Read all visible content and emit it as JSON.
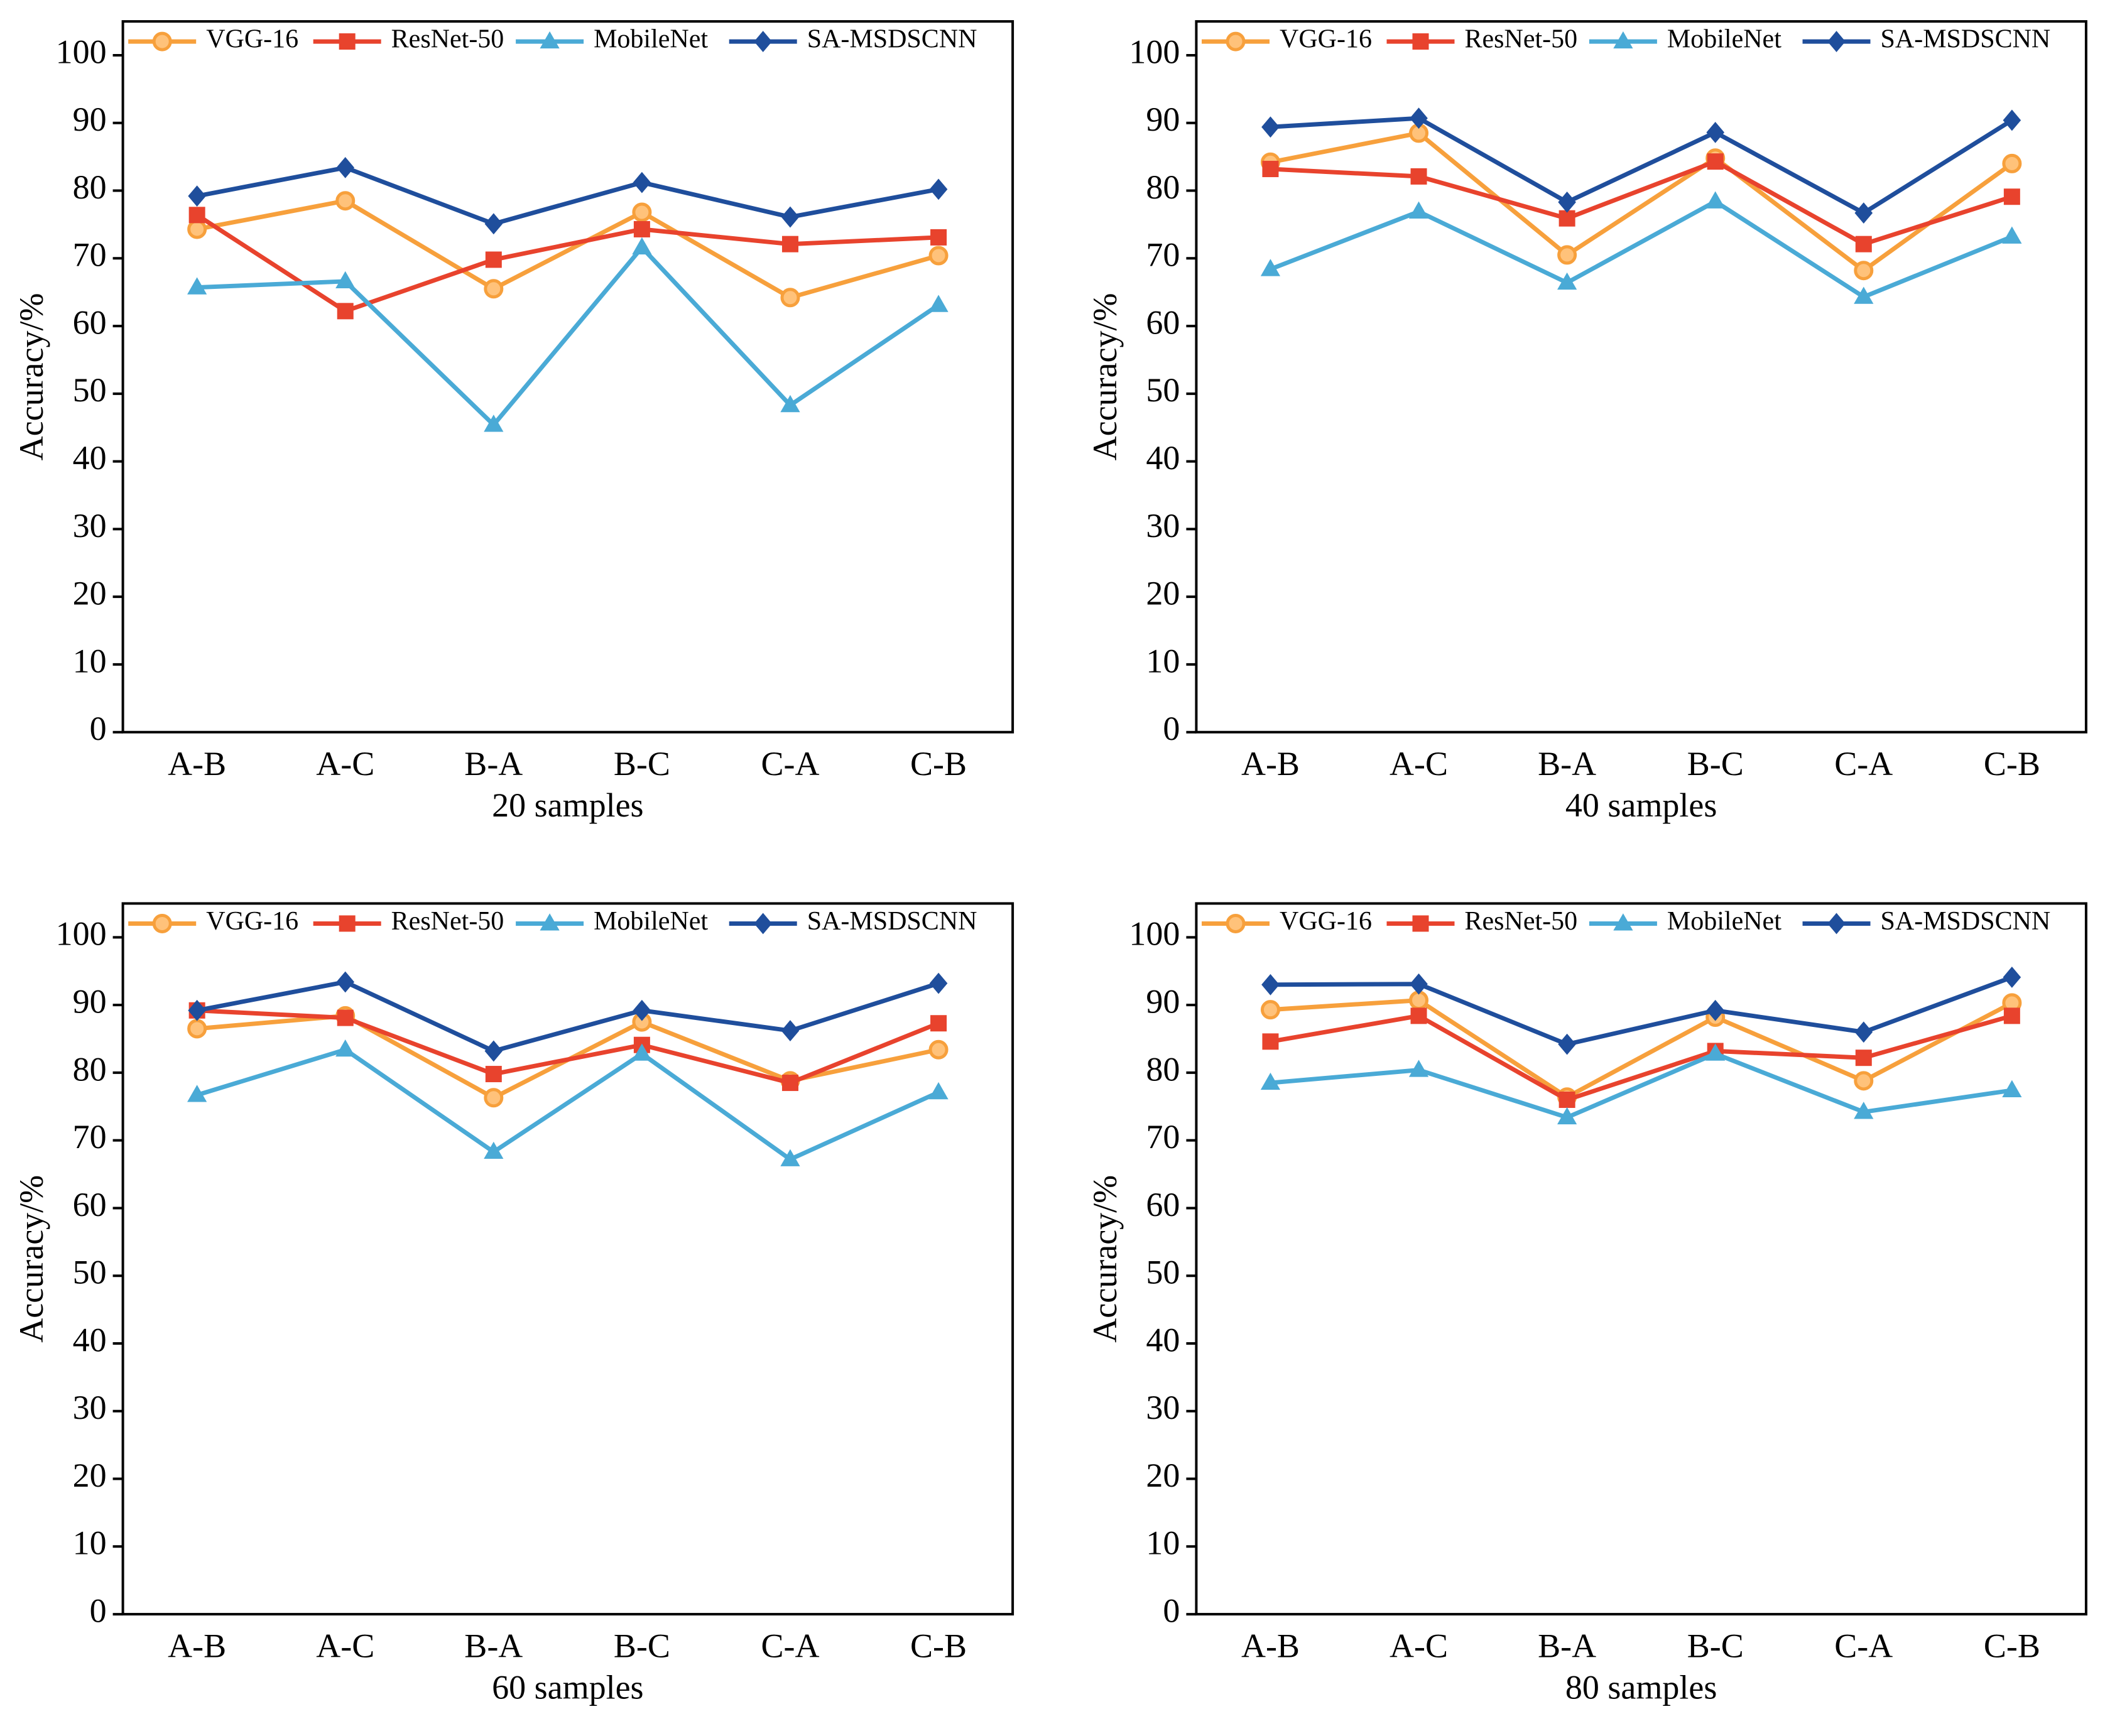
{
  "chart_data": [
    {
      "type": "line",
      "xlabel": "20 samples",
      "ylabel": "Accuracy/%",
      "categories": [
        "A-B",
        "A-C",
        "B-A",
        "B-C",
        "C-A",
        "C-B"
      ],
      "ylim": [
        0,
        105
      ],
      "yticks": [
        0,
        10,
        20,
        30,
        40,
        50,
        60,
        70,
        80,
        90,
        100
      ],
      "legend": "upper center",
      "series": [
        {
          "name": "VGG-16",
          "color": "#f7a03c",
          "marker": "circle",
          "values": [
            74.3,
            78.5,
            65.5,
            76.8,
            64.2,
            70.4
          ]
        },
        {
          "name": "ResNet-50",
          "color": "#e8432d",
          "marker": "square",
          "values": [
            76.4,
            62.2,
            69.8,
            74.3,
            72.1,
            73.1
          ]
        },
        {
          "name": "MobileNet",
          "color": "#4aaad6",
          "marker": "triangle",
          "values": [
            65.7,
            66.6,
            45.4,
            71.6,
            48.3,
            63.1
          ]
        },
        {
          "name": "SA-MSDSCNN",
          "color": "#1f4e9c",
          "marker": "diamond",
          "values": [
            79.2,
            83.4,
            75.1,
            81.2,
            76.1,
            80.2
          ]
        }
      ]
    },
    {
      "type": "line",
      "xlabel": "40 samples",
      "ylabel": "Accuracy/%",
      "categories": [
        "A-B",
        "A-C",
        "B-A",
        "B-C",
        "C-A",
        "C-B"
      ],
      "ylim": [
        0,
        105
      ],
      "yticks": [
        0,
        10,
        20,
        30,
        40,
        50,
        60,
        70,
        80,
        90,
        100
      ],
      "legend": "upper center",
      "series": [
        {
          "name": "VGG-16",
          "color": "#f7a03c",
          "marker": "circle",
          "values": [
            84.2,
            88.5,
            70.5,
            84.8,
            68.2,
            84.0
          ]
        },
        {
          "name": "ResNet-50",
          "color": "#e8432d",
          "marker": "square",
          "values": [
            83.2,
            82.1,
            75.9,
            84.3,
            72.1,
            79.1
          ]
        },
        {
          "name": "MobileNet",
          "color": "#4aaad6",
          "marker": "triangle",
          "values": [
            68.4,
            76.9,
            66.4,
            78.4,
            64.3,
            73.2
          ]
        },
        {
          "name": "SA-MSDSCNN",
          "color": "#1f4e9c",
          "marker": "diamond",
          "values": [
            89.4,
            90.7,
            78.3,
            88.6,
            76.7,
            90.4
          ]
        }
      ]
    },
    {
      "type": "line",
      "xlabel": "60 samples",
      "ylabel": "Accuracy/%",
      "categories": [
        "A-B",
        "A-C",
        "B-A",
        "B-C",
        "C-A",
        "C-B"
      ],
      "ylim": [
        0,
        105
      ],
      "yticks": [
        0,
        10,
        20,
        30,
        40,
        50,
        60,
        70,
        80,
        90,
        100
      ],
      "legend": "upper center",
      "series": [
        {
          "name": "VGG-16",
          "color": "#f7a03c",
          "marker": "circle",
          "values": [
            86.5,
            88.4,
            76.3,
            87.5,
            78.8,
            83.4
          ]
        },
        {
          "name": "ResNet-50",
          "color": "#e8432d",
          "marker": "square",
          "values": [
            89.2,
            88.1,
            79.8,
            84.1,
            78.5,
            87.3
          ]
        },
        {
          "name": "MobileNet",
          "color": "#4aaad6",
          "marker": "triangle",
          "values": [
            76.7,
            83.4,
            68.3,
            82.8,
            67.2,
            77.1
          ]
        },
        {
          "name": "SA-MSDSCNN",
          "color": "#1f4e9c",
          "marker": "diamond",
          "values": [
            89.2,
            93.4,
            83.2,
            89.2,
            86.2,
            93.2
          ]
        }
      ]
    },
    {
      "type": "line",
      "xlabel": "80 samples",
      "ylabel": "Accuracy/%",
      "categories": [
        "A-B",
        "A-C",
        "B-A",
        "B-C",
        "C-A",
        "C-B"
      ],
      "ylim": [
        0,
        105
      ],
      "yticks": [
        0,
        10,
        20,
        30,
        40,
        50,
        60,
        70,
        80,
        90,
        100
      ],
      "legend": "upper center",
      "series": [
        {
          "name": "VGG-16",
          "color": "#f7a03c",
          "marker": "circle",
          "values": [
            89.3,
            90.7,
            76.4,
            88.2,
            78.8,
            90.3
          ]
        },
        {
          "name": "ResNet-50",
          "color": "#e8432d",
          "marker": "square",
          "values": [
            84.6,
            88.4,
            76.0,
            83.2,
            82.2,
            88.4
          ]
        },
        {
          "name": "MobileNet",
          "color": "#4aaad6",
          "marker": "triangle",
          "values": [
            78.5,
            80.4,
            73.4,
            82.8,
            74.2,
            77.4
          ]
        },
        {
          "name": "SA-MSDSCNN",
          "color": "#1f4e9c",
          "marker": "diamond",
          "values": [
            93.0,
            93.1,
            84.2,
            89.2,
            86.0,
            94.1
          ]
        }
      ]
    }
  ]
}
